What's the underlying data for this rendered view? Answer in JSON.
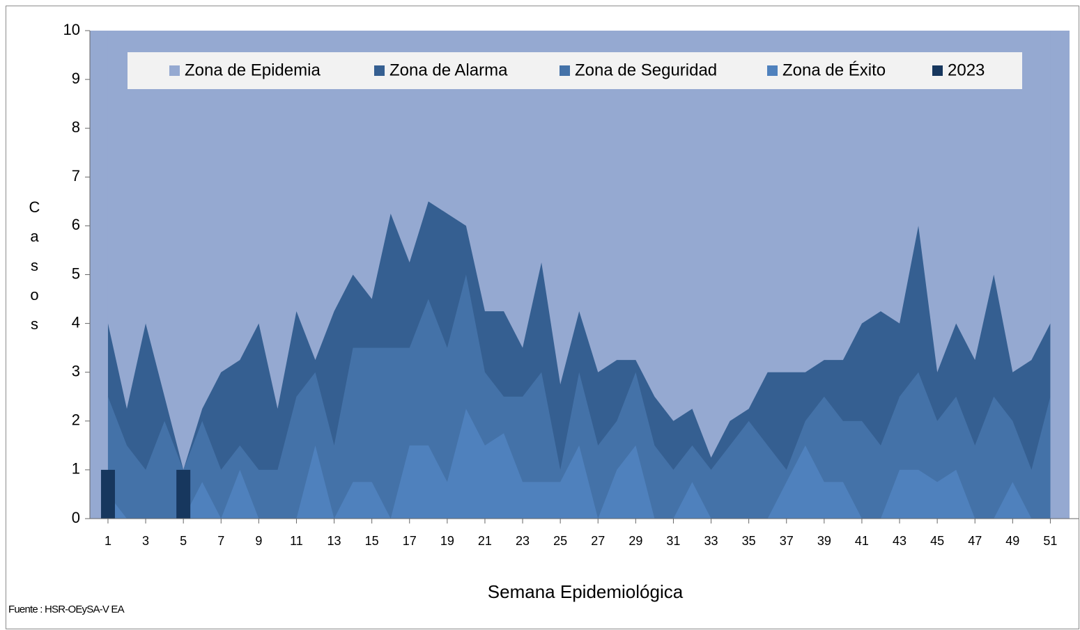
{
  "chart_data": {
    "type": "area",
    "xlabel": "Semana  Epidemiológica",
    "ylabel": "Casos",
    "source": "Fuente : HSR-OEySA-V EA",
    "x": [
      1,
      2,
      3,
      4,
      5,
      6,
      7,
      8,
      9,
      10,
      11,
      12,
      13,
      14,
      15,
      16,
      17,
      18,
      19,
      20,
      21,
      22,
      23,
      24,
      25,
      26,
      27,
      28,
      29,
      30,
      31,
      32,
      33,
      34,
      35,
      36,
      37,
      38,
      39,
      40,
      41,
      42,
      43,
      44,
      45,
      46,
      47,
      48,
      49,
      50,
      51
    ],
    "xlim": [
      0.04,
      52.5
    ],
    "xticks": [
      1,
      3,
      5,
      7,
      9,
      11,
      13,
      15,
      17,
      19,
      21,
      23,
      25,
      27,
      29,
      31,
      33,
      35,
      37,
      39,
      41,
      43,
      45,
      47,
      49,
      51
    ],
    "ylim": [
      0,
      10
    ],
    "yticks": [
      0,
      1,
      2,
      3,
      4,
      5,
      6,
      7,
      8,
      9,
      10
    ],
    "legend": "top",
    "series": [
      {
        "name": "Zona de Epidemia",
        "color": "#95a9d1",
        "kind": "area",
        "values": [
          10,
          10,
          10,
          10,
          10,
          10,
          10,
          10,
          10,
          10,
          10,
          10,
          10,
          10,
          10,
          10,
          10,
          10,
          10,
          10,
          10,
          10,
          10,
          10,
          10,
          10,
          10,
          10,
          10,
          10,
          10,
          10,
          10,
          10,
          10,
          10,
          10,
          10,
          10,
          10,
          10,
          10,
          10,
          10,
          10,
          10,
          10,
          10,
          10,
          10,
          10
        ]
      },
      {
        "name": "Zona de Alarma",
        "color": "#355f91",
        "kind": "area",
        "values": [
          4,
          2.25,
          4,
          2.5,
          1,
          2.25,
          3,
          3.25,
          4,
          2.25,
          4.25,
          3.25,
          4.25,
          5,
          4.5,
          6.25,
          5.25,
          6.5,
          6.25,
          6,
          4.25,
          4.25,
          3.5,
          5.25,
          2.75,
          4.25,
          3,
          3.25,
          3.25,
          2.5,
          2,
          2.25,
          1.25,
          2,
          2.25,
          3,
          3,
          3,
          3.25,
          3.25,
          4,
          4.25,
          4,
          6,
          3,
          4,
          3.25,
          5,
          3,
          3.25,
          4
        ]
      },
      {
        "name": "Zona de Seguridad",
        "color": "#4472a8",
        "kind": "area",
        "values": [
          2.5,
          1.5,
          1,
          2,
          1,
          2,
          1,
          1.5,
          1,
          1,
          2.5,
          3,
          1.5,
          3.5,
          3.5,
          3.5,
          3.5,
          4.5,
          3.5,
          5,
          3,
          2.5,
          2.5,
          3,
          1,
          3,
          1.5,
          2,
          3,
          1.5,
          1,
          1.5,
          1,
          1.5,
          2,
          1.5,
          1,
          2,
          2.5,
          2,
          2,
          1.5,
          2.5,
          3,
          2,
          2.5,
          1.5,
          2.5,
          2,
          1,
          2.5
        ]
      },
      {
        "name": "Zona de Éxito",
        "color": "#4f81bd",
        "kind": "area",
        "values": [
          0.5,
          0,
          0,
          0,
          0,
          0.75,
          0,
          1,
          0,
          0,
          0,
          1.5,
          0,
          0.75,
          0.75,
          0,
          1.5,
          1.5,
          0.75,
          2.25,
          1.5,
          1.75,
          0.75,
          0.75,
          0.75,
          1.5,
          0,
          1,
          1.5,
          0,
          0,
          0.75,
          0,
          0,
          0,
          0,
          0.75,
          1.5,
          0.75,
          0.75,
          0,
          0,
          1,
          1,
          0.75,
          1,
          0,
          0,
          0.75,
          0,
          0
        ]
      },
      {
        "name": "2023",
        "color": "#17375e",
        "kind": "bar",
        "values": [
          1,
          0,
          0,
          0,
          1,
          null,
          null,
          null,
          null,
          null,
          null,
          null,
          null,
          null,
          null,
          null,
          null,
          null,
          null,
          null,
          null,
          null,
          null,
          null,
          null,
          null,
          null,
          null,
          null,
          null,
          null,
          null,
          null,
          null,
          null,
          null,
          null,
          null,
          null,
          null,
          null,
          null,
          null,
          null,
          null,
          null,
          null,
          null,
          null,
          null,
          null
        ]
      }
    ]
  }
}
